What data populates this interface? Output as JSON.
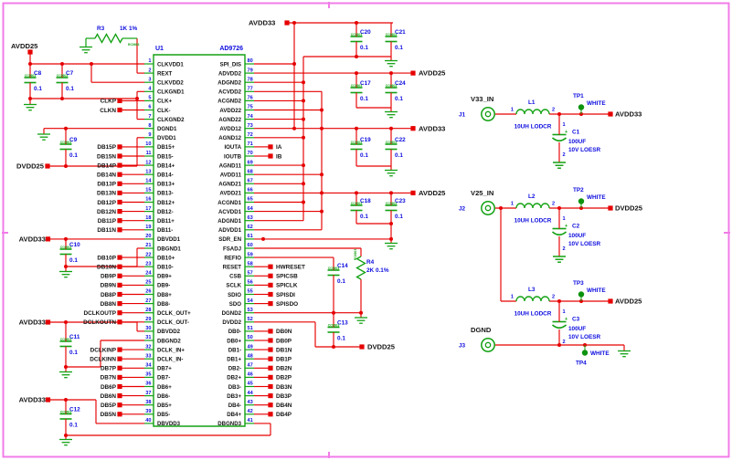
{
  "page": {
    "background": "#ffffff",
    "border_color": "#f07ce8"
  },
  "colors": {
    "wire": "#e60000",
    "symbol_green": "#12a112",
    "label_blue": "#0b0bdf",
    "text_dark": "#141414"
  },
  "ic": {
    "refdes": "U1",
    "part": "AD9726",
    "left_pins": [
      {
        "n": "1",
        "name": "CLKVDD1"
      },
      {
        "n": "2",
        "name": "REXT"
      },
      {
        "n": "3",
        "name": "CLKVDD2"
      },
      {
        "n": "4",
        "name": "CLKGND1"
      },
      {
        "n": "5",
        "name": "CLK+"
      },
      {
        "n": "6",
        "name": "CLK-"
      },
      {
        "n": "7",
        "name": "CLKGND2"
      },
      {
        "n": "8",
        "name": "DGND1"
      },
      {
        "n": "9",
        "name": "DVDD1"
      },
      {
        "n": "10",
        "name": "DB15+"
      },
      {
        "n": "11",
        "name": "DB15-"
      },
      {
        "n": "12",
        "name": "DB14+"
      },
      {
        "n": "13",
        "name": "DB14-"
      },
      {
        "n": "14",
        "name": "DB13+"
      },
      {
        "n": "15",
        "name": "DB13-"
      },
      {
        "n": "16",
        "name": "DB12+"
      },
      {
        "n": "17",
        "name": "DB12-"
      },
      {
        "n": "18",
        "name": "DB11+"
      },
      {
        "n": "19",
        "name": "DB11-"
      },
      {
        "n": "20",
        "name": "DBVDD1"
      },
      {
        "n": "21",
        "name": "DBGND1"
      },
      {
        "n": "22",
        "name": "DB10+"
      },
      {
        "n": "23",
        "name": "DB10-"
      },
      {
        "n": "24",
        "name": "DB9+"
      },
      {
        "n": "25",
        "name": "DB9-"
      },
      {
        "n": "26",
        "name": "DB8+"
      },
      {
        "n": "27",
        "name": "DB8-"
      },
      {
        "n": "28",
        "name": "DCLK_OUT+"
      },
      {
        "n": "29",
        "name": "DCLK_OUT-"
      },
      {
        "n": "30",
        "name": "DBVDD2"
      },
      {
        "n": "31",
        "name": "DBGND2"
      },
      {
        "n": "32",
        "name": "DCLK_IN+"
      },
      {
        "n": "33",
        "name": "DCLK_IN-"
      },
      {
        "n": "34",
        "name": "DB7+"
      },
      {
        "n": "35",
        "name": "DB7-"
      },
      {
        "n": "36",
        "name": "DB6+"
      },
      {
        "n": "37",
        "name": "DB6-"
      },
      {
        "n": "38",
        "name": "DB5+"
      },
      {
        "n": "39",
        "name": "DB5-"
      },
      {
        "n": "40",
        "name": "DBVDD3"
      }
    ],
    "right_pins": [
      {
        "n": "80",
        "name": "SPI_DIS"
      },
      {
        "n": "79",
        "name": "ADVDD2"
      },
      {
        "n": "78",
        "name": "ADGND2"
      },
      {
        "n": "77",
        "name": "ACVDD2"
      },
      {
        "n": "76",
        "name": "ACGND2"
      },
      {
        "n": "75",
        "name": "AVDD22"
      },
      {
        "n": "74",
        "name": "AGND22"
      },
      {
        "n": "73",
        "name": "AVDD12"
      },
      {
        "n": "72",
        "name": "AGND12"
      },
      {
        "n": "71",
        "name": "IOUTA"
      },
      {
        "n": "70",
        "name": "IOUTB"
      },
      {
        "n": "69",
        "name": "AGND11"
      },
      {
        "n": "68",
        "name": "AVDD11"
      },
      {
        "n": "67",
        "name": "AGND21"
      },
      {
        "n": "66",
        "name": "AVDD21"
      },
      {
        "n": "65",
        "name": "ACGND1"
      },
      {
        "n": "64",
        "name": "ACVDD1"
      },
      {
        "n": "63",
        "name": "ADGND1"
      },
      {
        "n": "62",
        "name": "ADVDD1"
      },
      {
        "n": "61",
        "name": "SDR_EN"
      },
      {
        "n": "60",
        "name": "FSADJ"
      },
      {
        "n": "59",
        "name": "REFIO"
      },
      {
        "n": "58",
        "name": "RESET"
      },
      {
        "n": "57",
        "name": "CSB"
      },
      {
        "n": "56",
        "name": "SCLK"
      },
      {
        "n": "55",
        "name": "SDIO"
      },
      {
        "n": "54",
        "name": "SDO"
      },
      {
        "n": "53",
        "name": "DGND2"
      },
      {
        "n": "52",
        "name": "DVDD2"
      },
      {
        "n": "51",
        "name": "DB0-"
      },
      {
        "n": "50",
        "name": "DB0+"
      },
      {
        "n": "49",
        "name": "DB1-"
      },
      {
        "n": "48",
        "name": "DB1+"
      },
      {
        "n": "47",
        "name": "DB2-"
      },
      {
        "n": "46",
        "name": "DB2+"
      },
      {
        "n": "45",
        "name": "DB3-"
      },
      {
        "n": "44",
        "name": "DB3+"
      },
      {
        "n": "43",
        "name": "DB4-"
      },
      {
        "n": "42",
        "name": "DB4+"
      },
      {
        "n": "41",
        "name": "DBGND3"
      }
    ]
  },
  "left_labels": [
    {
      "text": "CLKP",
      "pin": 5
    },
    {
      "text": "CLKN",
      "pin": 6
    },
    {
      "text": "DB15P",
      "pin": 10
    },
    {
      "text": "DB15N",
      "pin": 11
    },
    {
      "text": "DB14P",
      "pin": 12
    },
    {
      "text": "DB14N",
      "pin": 13
    },
    {
      "text": "DB13P",
      "pin": 14
    },
    {
      "text": "DB13N",
      "pin": 15
    },
    {
      "text": "DB12P",
      "pin": 16
    },
    {
      "text": "DB12N",
      "pin": 17
    },
    {
      "text": "DB11P",
      "pin": 18
    },
    {
      "text": "DB11N",
      "pin": 19
    },
    {
      "text": "DB10P",
      "pin": 22
    },
    {
      "text": "DB10N",
      "pin": 23
    },
    {
      "text": "DB9P",
      "pin": 24
    },
    {
      "text": "DB9N",
      "pin": 25
    },
    {
      "text": "DB8P",
      "pin": 26
    },
    {
      "text": "DB8N",
      "pin": 27
    },
    {
      "text": "DCLKOUTP",
      "pin": 28
    },
    {
      "text": "DCLKOUTN",
      "pin": 29
    },
    {
      "text": "DCLKINP",
      "pin": 32
    },
    {
      "text": "DCLKINN",
      "pin": 33
    },
    {
      "text": "DB7P",
      "pin": 34
    },
    {
      "text": "DB7N",
      "pin": 35
    },
    {
      "text": "DB6P",
      "pin": 36
    },
    {
      "text": "DB6N",
      "pin": 37
    },
    {
      "text": "DB5P",
      "pin": 38
    },
    {
      "text": "DB5N",
      "pin": 39
    }
  ],
  "right_labels": [
    {
      "text": "IA",
      "pin": 71
    },
    {
      "text": "IB",
      "pin": 70
    },
    {
      "text": "HWRESET",
      "pin": 58
    },
    {
      "text": "SPICSB",
      "pin": 57
    },
    {
      "text": "SPICLK",
      "pin": 56
    },
    {
      "text": "SPISDI",
      "pin": 55
    },
    {
      "text": "SPISDO",
      "pin": 54
    },
    {
      "text": "DB0N",
      "pin": 51
    },
    {
      "text": "DB0P",
      "pin": 50
    },
    {
      "text": "DB1N",
      "pin": 49
    },
    {
      "text": "DB1P",
      "pin": 48
    },
    {
      "text": "DB2N",
      "pin": 47
    },
    {
      "text": "DB2P",
      "pin": 46
    },
    {
      "text": "DB3N",
      "pin": 45
    },
    {
      "text": "DB3P",
      "pin": 44
    },
    {
      "text": "DB4N",
      "pin": 43
    },
    {
      "text": "DB4P",
      "pin": 42
    }
  ],
  "power": {
    "avdd25": "AVDD25",
    "dvdd25": "DVDD25",
    "avdd33": "AVDD33"
  },
  "resistors": [
    {
      "ref": "R3",
      "value": "1K 1%",
      "footprint": "RC0603"
    },
    {
      "ref": "R4",
      "value": "2K 0.1%",
      "footprint": "RC0603"
    }
  ],
  "capacitors": {
    "footprint": "CC0603",
    "value": "0.1",
    "refs": [
      "C8",
      "C7",
      "C9",
      "C10",
      "C11",
      "C12",
      "C20",
      "C21",
      "C17",
      "C24",
      "C19",
      "C22",
      "C18",
      "C23",
      "C14",
      "C13"
    ]
  },
  "terminals": {
    "one": "1",
    "two": "2"
  },
  "sections": [
    {
      "title": "V33_IN",
      "jack": "J1",
      "inductor": "L1",
      "inductor_value": "10UH LODCR",
      "testpoint": "TP1",
      "testpoint_note": "WHITE",
      "cap": "C1",
      "cap_value": "100UF",
      "cap_note": "10V LOESR",
      "out": "AVDD33"
    },
    {
      "title": "V25_IN",
      "jack": "J2",
      "inductor": "L2",
      "inductor_value": "10UH LODCR",
      "testpoint": "TP2",
      "testpoint_note": "WHITE",
      "cap": "C2",
      "cap_value": "100UF",
      "cap_note": "10V LOESR",
      "out": "DVDD25"
    },
    {
      "title": "",
      "jack": "",
      "inductor": "L3",
      "inductor_value": "10UH LODCR",
      "testpoint": "TP3",
      "testpoint_note": "WHITE",
      "cap": "C3",
      "cap_value": "100UF",
      "cap_note": "10V LOESR",
      "out": "AVDD25"
    }
  ],
  "ground_row": {
    "title": "DGND",
    "jack": "J3",
    "testpoint": "TP4",
    "testpoint_note": "WHITE"
  }
}
